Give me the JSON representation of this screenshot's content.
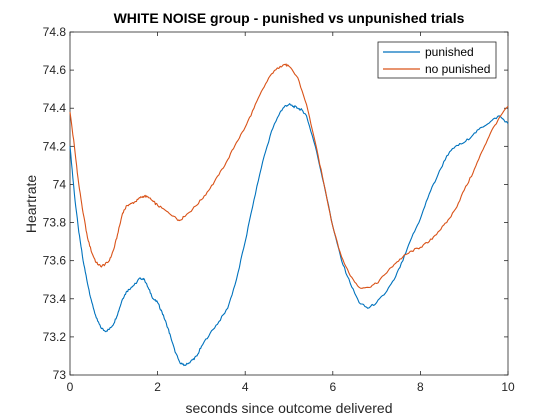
{
  "chart_data": {
    "type": "line",
    "title": "WHITE NOISE group - punished vs unpunished trials",
    "xlabel": "seconds since outcome delivered",
    "ylabel": "Heartrate",
    "xlim": [
      0,
      10
    ],
    "ylim": [
      73,
      74.8
    ],
    "xticks": [
      0,
      2,
      4,
      6,
      8,
      10
    ],
    "yticks": [
      73,
      73.2,
      73.4,
      73.6,
      73.8,
      74,
      74.2,
      74.4,
      74.6,
      74.8
    ],
    "xtick_labels": [
      "0",
      "2",
      "4",
      "6",
      "8",
      "10"
    ],
    "ytick_labels": [
      "73",
      "73.2",
      "73.4",
      "73.6",
      "73.8",
      "74",
      "74.2",
      "74.4",
      "74.6",
      "74.8"
    ],
    "grid": false,
    "legend_position": "top-right",
    "series": [
      {
        "name": "punished",
        "color": "#0072BD",
        "x": [
          0,
          0.1,
          0.2,
          0.3,
          0.4,
          0.5,
          0.6,
          0.7,
          0.8,
          0.9,
          1.0,
          1.1,
          1.2,
          1.3,
          1.4,
          1.5,
          1.6,
          1.7,
          1.8,
          1.9,
          2.0,
          2.1,
          2.2,
          2.3,
          2.4,
          2.5,
          2.6,
          2.7,
          2.8,
          2.9,
          3.0,
          3.2,
          3.4,
          3.6,
          3.8,
          4.0,
          4.2,
          4.4,
          4.6,
          4.8,
          4.9,
          5.0,
          5.1,
          5.2,
          5.3,
          5.4,
          5.6,
          5.8,
          6.0,
          6.2,
          6.4,
          6.6,
          6.8,
          7.0,
          7.2,
          7.4,
          7.6,
          7.8,
          8.0,
          8.2,
          8.4,
          8.6,
          8.8,
          9.0,
          9.2,
          9.4,
          9.6,
          9.8,
          10.0
        ],
        "values": [
          74.2,
          73.95,
          73.75,
          73.6,
          73.48,
          73.38,
          73.3,
          73.25,
          73.23,
          73.24,
          73.27,
          73.33,
          73.4,
          73.44,
          73.46,
          73.48,
          73.51,
          73.5,
          73.45,
          73.4,
          73.38,
          73.33,
          73.27,
          73.2,
          73.12,
          73.07,
          73.05,
          73.06,
          73.08,
          73.1,
          73.15,
          73.22,
          73.28,
          73.35,
          73.5,
          73.7,
          73.92,
          74.12,
          74.28,
          74.38,
          74.41,
          74.42,
          74.41,
          74.4,
          74.39,
          74.36,
          74.2,
          74.0,
          73.78,
          73.6,
          73.48,
          73.38,
          73.35,
          73.38,
          73.43,
          73.5,
          73.6,
          73.72,
          73.82,
          73.95,
          74.05,
          74.15,
          74.2,
          74.22,
          74.26,
          74.3,
          74.33,
          74.36,
          74.32
        ]
      },
      {
        "name": "no punished",
        "color": "#D95319",
        "x": [
          0,
          0.1,
          0.2,
          0.3,
          0.4,
          0.5,
          0.6,
          0.7,
          0.8,
          0.9,
          1.0,
          1.1,
          1.2,
          1.3,
          1.4,
          1.5,
          1.6,
          1.7,
          1.8,
          1.9,
          2.0,
          2.2,
          2.4,
          2.5,
          2.6,
          2.8,
          3.0,
          3.2,
          3.4,
          3.6,
          3.8,
          4.0,
          4.2,
          4.4,
          4.6,
          4.8,
          4.9,
          5.0,
          5.2,
          5.4,
          5.6,
          5.8,
          6.0,
          6.2,
          6.4,
          6.6,
          6.8,
          7.0,
          7.2,
          7.4,
          7.6,
          7.8,
          8.0,
          8.2,
          8.4,
          8.6,
          8.8,
          9.0,
          9.2,
          9.4,
          9.6,
          9.8,
          10.0
        ],
        "values": [
          74.38,
          74.2,
          74.0,
          73.85,
          73.72,
          73.64,
          73.59,
          73.57,
          73.58,
          73.6,
          73.66,
          73.75,
          73.85,
          73.89,
          73.9,
          73.91,
          73.93,
          73.94,
          73.93,
          73.91,
          73.89,
          73.86,
          73.83,
          73.81,
          73.83,
          73.87,
          73.92,
          73.98,
          74.05,
          74.13,
          74.22,
          74.3,
          74.4,
          74.5,
          74.58,
          74.62,
          74.63,
          74.62,
          74.56,
          74.42,
          74.22,
          74.0,
          73.78,
          73.62,
          73.52,
          73.46,
          73.46,
          73.48,
          73.53,
          73.58,
          73.62,
          73.65,
          73.67,
          73.7,
          73.75,
          73.8,
          73.87,
          73.97,
          74.06,
          74.17,
          74.27,
          74.35,
          74.41
        ]
      }
    ]
  }
}
